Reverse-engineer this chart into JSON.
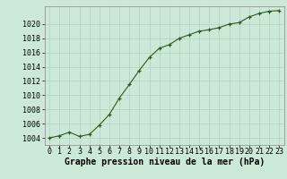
{
  "x": [
    0,
    1,
    2,
    3,
    4,
    5,
    6,
    7,
    8,
    9,
    10,
    11,
    12,
    13,
    14,
    15,
    16,
    17,
    18,
    19,
    20,
    21,
    22,
    23
  ],
  "y": [
    1004.0,
    1004.3,
    1004.8,
    1004.2,
    1004.5,
    1005.8,
    1007.3,
    1009.6,
    1011.5,
    1013.5,
    1015.3,
    1016.6,
    1017.1,
    1018.0,
    1018.5,
    1019.0,
    1019.2,
    1019.5,
    1020.0,
    1020.2,
    1021.0,
    1021.5,
    1021.8,
    1021.9
  ],
  "line_color": "#2d5a1b",
  "marker_color": "#2d5a1b",
  "bg_color": "#cce9d8",
  "grid_color": "#aad4c0",
  "xlim": [
    -0.5,
    23.5
  ],
  "ylim": [
    1003.0,
    1022.5
  ],
  "yticks": [
    1004,
    1006,
    1008,
    1010,
    1012,
    1014,
    1016,
    1018,
    1020
  ],
  "xticks": [
    0,
    1,
    2,
    3,
    4,
    5,
    6,
    7,
    8,
    9,
    10,
    11,
    12,
    13,
    14,
    15,
    16,
    17,
    18,
    19,
    20,
    21,
    22,
    23
  ],
  "xlabel": "Graphe pression niveau de la mer (hPa)",
  "title_fontsize": 7,
  "tick_fontsize": 6,
  "spine_color": "#888888"
}
